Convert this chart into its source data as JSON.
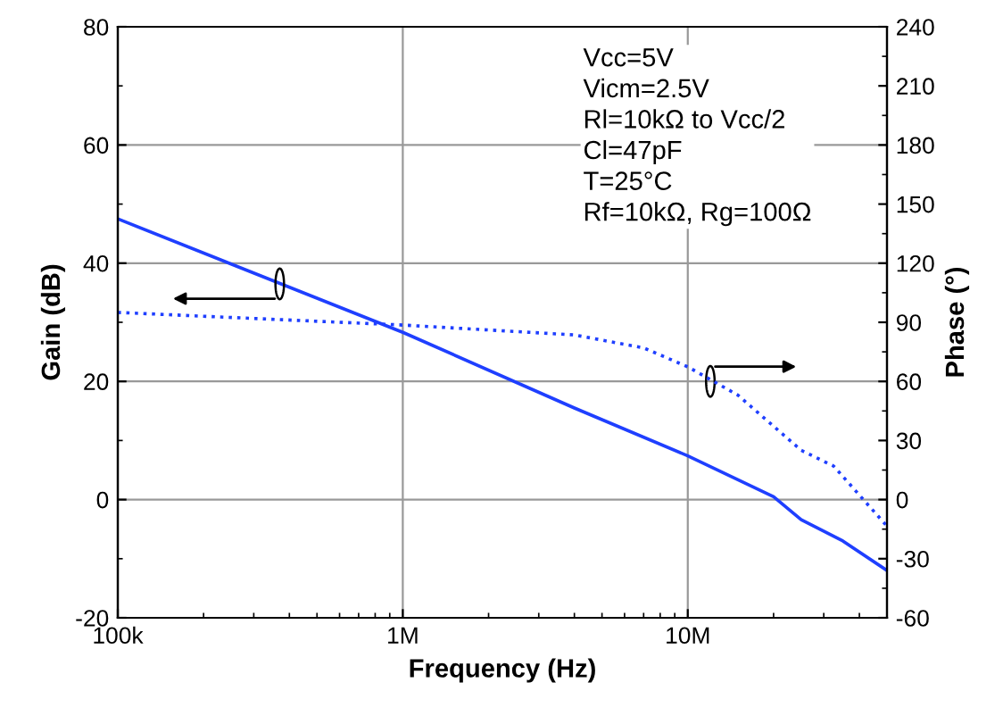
{
  "chart_data": {
    "type": "line",
    "xlabel": "Frequency (Hz)",
    "ylabel": "Gain (dB)",
    "y2label": "Phase (°)",
    "log": "x",
    "grid": true,
    "legend": false,
    "marker": "none",
    "xlim": [
      100000,
      50000000
    ],
    "xticks": [
      {
        "value": 100000,
        "label": "100k"
      },
      {
        "value": 1000000,
        "label": "1M"
      },
      {
        "value": 10000000,
        "label": "10M"
      }
    ],
    "ylim": [
      -20,
      80
    ],
    "yticks": [
      -20,
      0,
      20,
      40,
      60,
      80
    ],
    "y2lim": [
      -60,
      240
    ],
    "y2ticks": [
      -60,
      -30,
      0,
      30,
      60,
      90,
      120,
      150,
      180,
      210,
      240
    ],
    "series": [
      {
        "color": "#1f3fff",
        "line_style": "solid",
        "x": [
          100000,
          1000000,
          4000000,
          10000000,
          20000000,
          25000000,
          35000000,
          50000000
        ],
        "values": [
          47.5,
          28.3,
          15.5,
          7.4,
          0.5,
          -3.4,
          -7,
          -12
        ]
      },
      {
        "color": "#1f3fff",
        "line_style": "dotted",
        "axis": "y2",
        "x": [
          100000,
          1000000,
          4000000,
          7000000,
          10000000,
          15000000,
          25000000,
          32500000,
          50000000
        ],
        "values": [
          95,
          88.6,
          83.6,
          77,
          67.4,
          53,
          25,
          17,
          -13.5
        ]
      }
    ],
    "annotations": [
      "Vcc=5V",
      "Vicm=2.5V",
      "Rl=10kΩ to Vcc/2",
      "Cl=47pF",
      "T=25°C",
      "Rf=10kΩ, Rg=100Ω"
    ]
  }
}
